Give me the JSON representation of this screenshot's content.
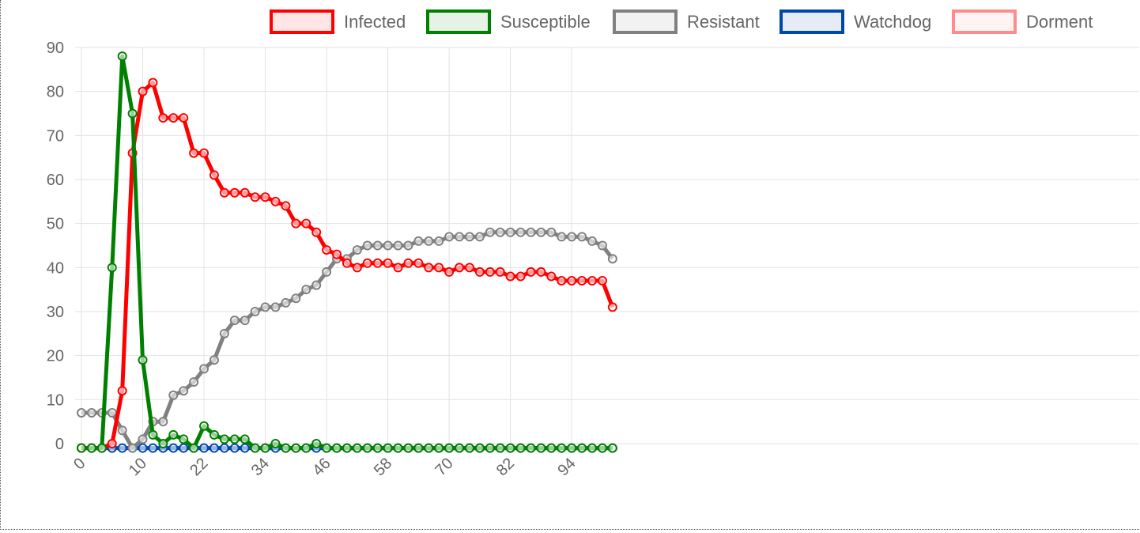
{
  "chart_data": {
    "type": "line",
    "title": "",
    "xlabel": "",
    "ylabel": "",
    "ylim": [
      -1,
      90
    ],
    "yticks": [
      0,
      10,
      20,
      30,
      40,
      50,
      60,
      70,
      80,
      90
    ],
    "x_tick_labels": [
      "0",
      "10",
      "22",
      "34",
      "46",
      "58",
      "70",
      "82",
      "94"
    ],
    "x_tick_positions": [
      0,
      6,
      12,
      18,
      24,
      30,
      36,
      42,
      48
    ],
    "grid": true,
    "legend_position": "top",
    "x_count": 53,
    "series": [
      {
        "name": "Infected",
        "color": "#ff0000",
        "values": [
          -1,
          -1,
          -1,
          0,
          12,
          66,
          80,
          82,
          74,
          74,
          74,
          66,
          66,
          61,
          57,
          57,
          57,
          56,
          56,
          55,
          54,
          50,
          50,
          48,
          44,
          43,
          41,
          40,
          41,
          41,
          41,
          40,
          41,
          41,
          40,
          40,
          39,
          40,
          40,
          39,
          39,
          39,
          38,
          38,
          39,
          39,
          38,
          37,
          37,
          37,
          37,
          37,
          31
        ]
      },
      {
        "name": "Susceptible",
        "color": "#008000",
        "values": [
          -1,
          -1,
          -1,
          40,
          88,
          75,
          19,
          2,
          0,
          2,
          1,
          -1,
          4,
          2,
          1,
          1,
          1,
          -1,
          -1,
          0,
          -1,
          -1,
          -1,
          0,
          -1,
          -1,
          -1,
          -1,
          -1,
          -1,
          -1,
          -1,
          -1,
          -1,
          -1,
          -1,
          -1,
          -1,
          -1,
          -1,
          -1,
          -1,
          -1,
          -1,
          -1,
          -1,
          -1,
          -1,
          -1,
          -1,
          -1,
          -1,
          -1
        ]
      },
      {
        "name": "Resistant",
        "color": "#808080",
        "values": [
          7,
          7,
          7,
          7,
          3,
          -1,
          1,
          5,
          5,
          11,
          12,
          14,
          17,
          19,
          25,
          28,
          28,
          30,
          31,
          31,
          32,
          33,
          35,
          36,
          39,
          42,
          42,
          44,
          45,
          45,
          45,
          45,
          45,
          46,
          46,
          46,
          47,
          47,
          47,
          47,
          48,
          48,
          48,
          48,
          48,
          48,
          48,
          47,
          47,
          47,
          46,
          45,
          42
        ]
      },
      {
        "name": "Watchdog",
        "color": "#0047ab",
        "values": [
          -1,
          -1,
          -1,
          -1,
          -1,
          -1,
          -1,
          -1,
          -1,
          -1,
          -1,
          -1,
          -1,
          -1,
          -1,
          -1,
          -1,
          -1,
          -1,
          -1,
          -1,
          -1,
          -1,
          -1,
          -1,
          -1,
          -1,
          -1,
          -1,
          -1,
          -1,
          -1,
          -1,
          -1,
          -1,
          -1,
          -1,
          -1,
          -1,
          -1,
          -1,
          -1,
          -1,
          -1,
          -1,
          -1,
          -1,
          -1,
          -1,
          -1,
          -1,
          -1,
          -1
        ]
      },
      {
        "name": "Dorment",
        "color": "#ff8c8c",
        "values": []
      }
    ]
  }
}
